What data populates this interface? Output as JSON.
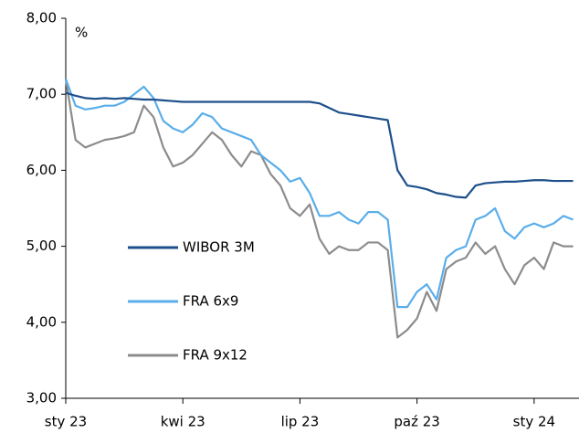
{
  "chart_data": {
    "type": "line",
    "y_unit": "%",
    "x": [
      0,
      0.25,
      0.5,
      0.75,
      1,
      1.25,
      1.5,
      1.75,
      2,
      2.25,
      2.5,
      2.75,
      3,
      3.25,
      3.5,
      3.75,
      4,
      4.25,
      4.5,
      4.75,
      5,
      5.25,
      5.5,
      5.75,
      6,
      6.25,
      6.5,
      6.75,
      7,
      7.25,
      7.5,
      7.75,
      8,
      8.25,
      8.5,
      8.75,
      9,
      9.25,
      9.5,
      9.75,
      10,
      10.25,
      10.5,
      10.75,
      11,
      11.25,
      11.5,
      11.75,
      12,
      12.25,
      12.5,
      12.75,
      13
    ],
    "xlim": [
      0,
      13.15
    ],
    "xticks": [
      {
        "value": 0,
        "label": "sty 23"
      },
      {
        "value": 3,
        "label": "kwi 23"
      },
      {
        "value": 6,
        "label": "lip 23"
      },
      {
        "value": 9,
        "label": "paź 23"
      },
      {
        "value": 12,
        "label": "sty 24"
      }
    ],
    "ylim": [
      3,
      8
    ],
    "yticks": [
      {
        "value": 3,
        "label": "3,00"
      },
      {
        "value": 4,
        "label": "4,00"
      },
      {
        "value": 5,
        "label": "5,00"
      },
      {
        "value": 6,
        "label": "6,00"
      },
      {
        "value": 7,
        "label": "7,00"
      },
      {
        "value": 8,
        "label": "8,00"
      }
    ],
    "grid": false,
    "legend": "lower left",
    "series": [
      {
        "name": "WIBOR 3M",
        "color": "#1d4f8b",
        "values": [
          7.02,
          6.98,
          6.95,
          6.94,
          6.95,
          6.94,
          6.95,
          6.94,
          6.93,
          6.93,
          6.92,
          6.91,
          6.9,
          6.9,
          6.9,
          6.9,
          6.9,
          6.9,
          6.9,
          6.9,
          6.9,
          6.9,
          6.9,
          6.9,
          6.9,
          6.9,
          6.88,
          6.82,
          6.76,
          6.74,
          6.72,
          6.7,
          6.68,
          6.66,
          6.0,
          5.8,
          5.78,
          5.75,
          5.7,
          5.68,
          5.65,
          5.64,
          5.8,
          5.83,
          5.84,
          5.85,
          5.85,
          5.86,
          5.87,
          5.87,
          5.86,
          5.86,
          5.86
        ]
      },
      {
        "name": "FRA 6x9",
        "color": "#5aaeea",
        "values": [
          7.2,
          6.85,
          6.8,
          6.82,
          6.85,
          6.85,
          6.9,
          7.0,
          7.1,
          6.95,
          6.65,
          6.55,
          6.5,
          6.6,
          6.75,
          6.7,
          6.55,
          6.5,
          6.45,
          6.4,
          6.2,
          6.1,
          6.0,
          5.85,
          5.9,
          5.7,
          5.4,
          5.4,
          5.45,
          5.35,
          5.3,
          5.45,
          5.45,
          5.35,
          4.2,
          4.2,
          4.4,
          4.5,
          4.3,
          4.85,
          4.95,
          5.0,
          5.35,
          5.4,
          5.5,
          5.2,
          5.1,
          5.25,
          5.3,
          5.25,
          5.3,
          5.4,
          5.35
        ]
      },
      {
        "name": "FRA 9x12",
        "color": "#8c8c8c",
        "values": [
          7.2,
          6.4,
          6.3,
          6.35,
          6.4,
          6.42,
          6.45,
          6.5,
          6.85,
          6.7,
          6.3,
          6.05,
          6.1,
          6.2,
          6.35,
          6.5,
          6.4,
          6.2,
          6.05,
          6.25,
          6.2,
          5.95,
          5.8,
          5.5,
          5.4,
          5.55,
          5.1,
          4.9,
          5.0,
          4.95,
          4.95,
          5.05,
          5.05,
          4.95,
          3.8,
          3.9,
          4.05,
          4.4,
          4.15,
          4.7,
          4.8,
          4.85,
          5.05,
          4.9,
          5.0,
          4.7,
          4.5,
          4.75,
          4.85,
          4.7,
          5.05,
          5.0,
          5.0
        ]
      }
    ]
  }
}
